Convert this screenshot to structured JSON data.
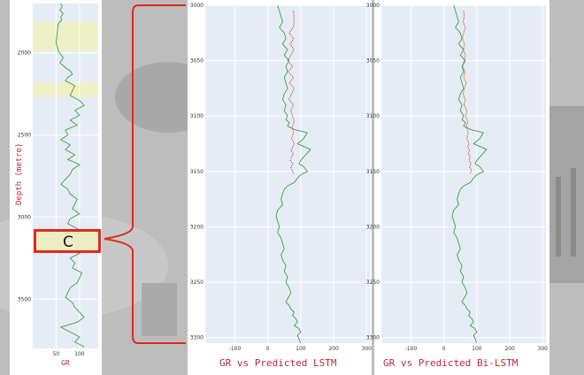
{
  "chart_data": [
    {
      "type": "line",
      "xlabel": "GR",
      "ylabel": "Depth (metre)",
      "x_ticks": [
        50,
        100
      ],
      "y_ticks": [
        2000,
        2500,
        3000,
        3500
      ],
      "xlim": [
        0,
        140
      ],
      "ylim": [
        1700,
        3800
      ],
      "highlight_bands": [
        [
          1810,
          1990
        ],
        [
          2180,
          2270
        ]
      ],
      "callout": {
        "label": "C",
        "depth_range": [
          3000,
          3260
        ]
      },
      "series": [
        {
          "color": "#3aa044",
          "x": [
            60,
            63,
            58,
            65,
            60,
            62,
            55,
            52,
            50,
            55,
            60,
            65,
            58,
            70,
            80,
            85,
            75,
            70,
            90,
            85,
            80,
            100,
            110,
            90,
            100,
            80,
            95,
            70,
            75,
            60,
            80,
            70,
            90,
            75,
            100,
            85,
            80,
            70,
            60,
            75,
            80,
            95,
            90,
            85,
            100,
            80,
            75,
            95,
            110,
            60,
            80,
            50,
            100,
            80,
            90,
            85,
            105,
            100,
            95,
            80,
            75,
            70,
            85,
            90,
            100,
            110,
            95,
            60,
            80,
            100,
            90,
            110
          ],
          "y": [
            1700,
            1720,
            1740,
            1760,
            1780,
            1800,
            1820,
            1880,
            1940,
            1990,
            2010,
            2030,
            2060,
            2090,
            2110,
            2130,
            2150,
            2170,
            2200,
            2230,
            2260,
            2290,
            2320,
            2350,
            2380,
            2410,
            2440,
            2470,
            2500,
            2530,
            2560,
            2590,
            2620,
            2650,
            2680,
            2710,
            2740,
            2770,
            2800,
            2830,
            2860,
            2890,
            2920,
            2950,
            2980,
            3010,
            3040,
            3070,
            3100,
            3130,
            3160,
            3190,
            3220,
            3250,
            3280,
            3310,
            3340,
            3370,
            3400,
            3430,
            3460,
            3490,
            3520,
            3550,
            3580,
            3610,
            3640,
            3670,
            3700,
            3730,
            3760,
            3790
          ]
        }
      ]
    },
    {
      "type": "line",
      "title": "GR vs Predicted LSTM",
      "x_ticks": [
        -100,
        0,
        100,
        200,
        300
      ],
      "y_ticks": [
        3000,
        3050,
        3100,
        3150,
        3200,
        3250,
        3300
      ],
      "xlim": [
        -190,
        310
      ],
      "ylim": [
        3000,
        3305
      ],
      "series": [
        {
          "color": "#3aa044",
          "style": "solid",
          "x": [
            30,
            35,
            40,
            45,
            35,
            50,
            55,
            45,
            60,
            50,
            65,
            55,
            60,
            50,
            55,
            60,
            50,
            45,
            55,
            50,
            60,
            55,
            65,
            60,
            80,
            120,
            110,
            90,
            130,
            115,
            100,
            95,
            110,
            120,
            100,
            90,
            80,
            60,
            50,
            45,
            40,
            45,
            30,
            25,
            30,
            35,
            30,
            40,
            45,
            50,
            40,
            45,
            55,
            50,
            60,
            55,
            65,
            70,
            60,
            55,
            65,
            70,
            80,
            75,
            85,
            90,
            80,
            95,
            100,
            90,
            95,
            100
          ],
          "y": [
            3000,
            3005,
            3010,
            3015,
            3020,
            3025,
            3030,
            3035,
            3040,
            3045,
            3050,
            3055,
            3060,
            3065,
            3070,
            3075,
            3080,
            3085,
            3090,
            3095,
            3100,
            3103,
            3106,
            3109,
            3112,
            3115,
            3120,
            3125,
            3130,
            3135,
            3140,
            3143,
            3146,
            3150,
            3153,
            3156,
            3160,
            3163,
            3166,
            3170,
            3175,
            3180,
            3185,
            3190,
            3195,
            3200,
            3205,
            3210,
            3215,
            3220,
            3225,
            3230,
            3235,
            3240,
            3245,
            3250,
            3255,
            3260,
            3265,
            3268,
            3271,
            3274,
            3277,
            3280,
            3283,
            3286,
            3289,
            3292,
            3295,
            3298,
            3301,
            3305
          ]
        },
        {
          "color": "#d0492f",
          "style": "dotted",
          "x": [
            78,
            79,
            80,
            77,
            65,
            78,
            68,
            79,
            70,
            60,
            75,
            62,
            78,
            66,
            80,
            72,
            64,
            78,
            70,
            75,
            80,
            74,
            78,
            72,
            80,
            76,
            70,
            78,
            72,
            68,
            76,
            70,
            74,
            78
          ],
          "y": [
            3005,
            3010,
            3015,
            3020,
            3025,
            3030,
            3035,
            3040,
            3045,
            3050,
            3055,
            3060,
            3065,
            3070,
            3075,
            3080,
            3085,
            3090,
            3095,
            3100,
            3105,
            3110,
            3115,
            3120,
            3125,
            3128,
            3131,
            3134,
            3137,
            3140,
            3143,
            3146,
            3149,
            3152
          ]
        }
      ]
    },
    {
      "type": "line",
      "title": "GR vs Predicted Bi-LSTM",
      "x_ticks": [
        -100,
        0,
        100,
        200,
        300
      ],
      "y_ticks": [
        3000,
        3050,
        3100,
        3150,
        3200,
        3250,
        3300
      ],
      "xlim": [
        -190,
        310
      ],
      "ylim": [
        3000,
        3305
      ],
      "series": [
        {
          "color": "#3aa044",
          "style": "solid",
          "x": [
            30,
            35,
            40,
            45,
            35,
            50,
            55,
            45,
            60,
            50,
            65,
            55,
            60,
            50,
            55,
            60,
            50,
            45,
            55,
            50,
            60,
            55,
            65,
            60,
            80,
            120,
            110,
            90,
            130,
            115,
            100,
            95,
            110,
            120,
            100,
            90,
            80,
            60,
            50,
            45,
            40,
            45,
            30,
            25,
            30,
            35,
            30,
            40,
            45,
            50,
            40,
            45,
            55,
            50,
            60,
            55,
            65,
            70,
            60,
            55,
            65,
            70,
            80,
            75,
            85,
            90,
            80,
            95,
            100,
            90,
            95,
            100
          ],
          "y": [
            3000,
            3005,
            3010,
            3015,
            3020,
            3025,
            3030,
            3035,
            3040,
            3045,
            3050,
            3055,
            3060,
            3065,
            3070,
            3075,
            3080,
            3085,
            3090,
            3095,
            3100,
            3103,
            3106,
            3109,
            3112,
            3115,
            3120,
            3125,
            3130,
            3135,
            3140,
            3143,
            3146,
            3150,
            3153,
            3156,
            3160,
            3163,
            3166,
            3170,
            3175,
            3180,
            3185,
            3190,
            3195,
            3200,
            3205,
            3210,
            3215,
            3220,
            3225,
            3230,
            3235,
            3240,
            3245,
            3250,
            3255,
            3260,
            3265,
            3268,
            3271,
            3274,
            3277,
            3280,
            3283,
            3286,
            3289,
            3292,
            3295,
            3298,
            3301,
            3305
          ]
        },
        {
          "color": "#d0492f",
          "style": "dotted",
          "x": [
            60,
            62,
            58,
            65,
            60,
            56,
            63,
            59,
            66,
            61,
            57,
            64,
            60,
            68,
            62,
            58,
            65,
            61,
            70,
            66,
            72,
            68,
            74,
            70,
            76,
            72,
            78,
            74,
            80,
            76,
            82,
            78,
            84,
            80
          ],
          "y": [
            3005,
            3010,
            3015,
            3020,
            3025,
            3030,
            3035,
            3040,
            3045,
            3050,
            3055,
            3060,
            3065,
            3070,
            3075,
            3080,
            3085,
            3090,
            3095,
            3100,
            3105,
            3110,
            3115,
            3120,
            3125,
            3128,
            3131,
            3134,
            3137,
            3140,
            3143,
            3146,
            3149,
            3152
          ]
        }
      ]
    }
  ]
}
